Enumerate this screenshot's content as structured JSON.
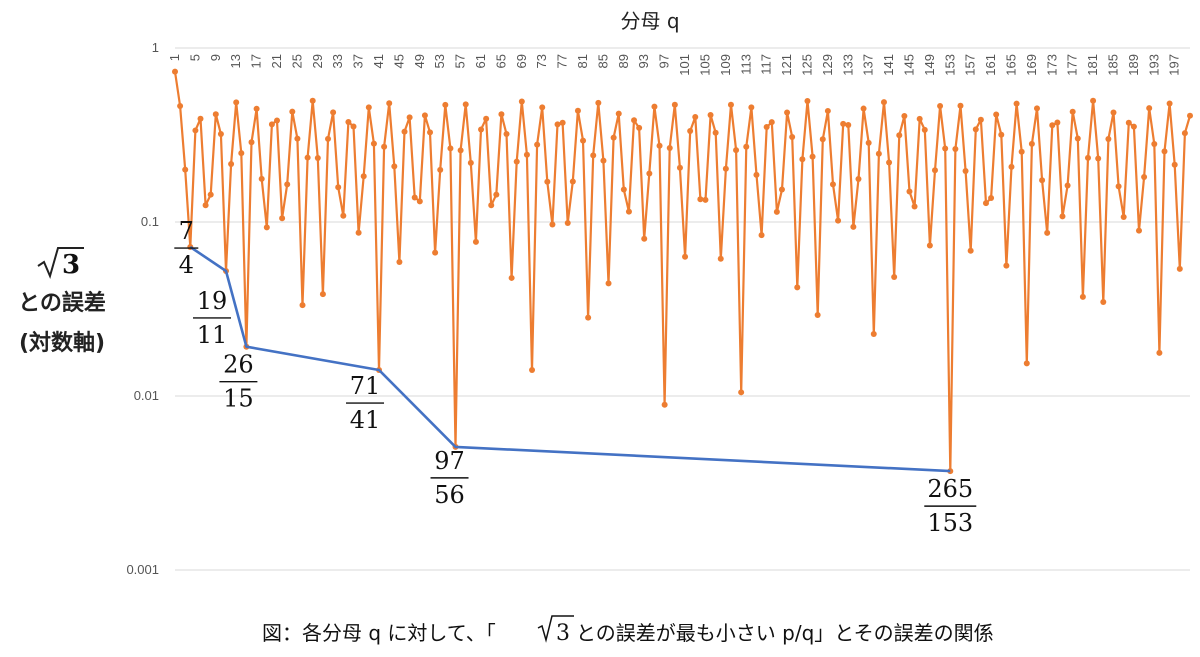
{
  "chart_data": {
    "type": "line",
    "title": "",
    "xlabel": "分母 q",
    "ylabel": {
      "sqrt_base": "3",
      "line1": "との誤差",
      "line2": "(対数軸)"
    },
    "x_axis_position": "top",
    "x_tick_labels": [
      1,
      5,
      9,
      13,
      17,
      21,
      25,
      29,
      33,
      37,
      41,
      45,
      49,
      53,
      57,
      61,
      65,
      69,
      73,
      77,
      81,
      85,
      89,
      93,
      97,
      101,
      105,
      109,
      113,
      117,
      121,
      125,
      129,
      133,
      137,
      141,
      145,
      149,
      153,
      157,
      161,
      165,
      169,
      173,
      177,
      181,
      185,
      189,
      193,
      197
    ],
    "y_scale": "log",
    "ylim": [
      0.001,
      1
    ],
    "y_tick_labels": [
      "1",
      "0.1",
      "0.01",
      "0.001"
    ],
    "y_tick_values": [
      1,
      0.1,
      0.01,
      0.001
    ],
    "grid": true,
    "series": [
      {
        "name": "",
        "color": "#ED7D31",
        "x": [
          1,
          2,
          3,
          4,
          5,
          6,
          7,
          8,
          9,
          10,
          11,
          12,
          13,
          14,
          15,
          16,
          17,
          18,
          19,
          20,
          21,
          22,
          23,
          24,
          25,
          26,
          27,
          28,
          29,
          30,
          31,
          32,
          33,
          34,
          35,
          36,
          37,
          38,
          39,
          40,
          41,
          42,
          43,
          44,
          45,
          46,
          47,
          48,
          49,
          50,
          51,
          52,
          53,
          54,
          55,
          56,
          57,
          58,
          59,
          60,
          61,
          62,
          63,
          64,
          65,
          66,
          67,
          68,
          69,
          70,
          71,
          72,
          73,
          74,
          75,
          76,
          77,
          78,
          79,
          80,
          81,
          82,
          83,
          84,
          85,
          86,
          87,
          88,
          89,
          90,
          91,
          92,
          93,
          94,
          95,
          96,
          97,
          98,
          99,
          100,
          101,
          102,
          103,
          104,
          105,
          106,
          107,
          108,
          109,
          110,
          111,
          112,
          113,
          114,
          115,
          116,
          117,
          118,
          119,
          120,
          121,
          122,
          123,
          124,
          125,
          126,
          127,
          128,
          129,
          130,
          131,
          132,
          133,
          134,
          135,
          136,
          137,
          138,
          139,
          140,
          141,
          142,
          143,
          144,
          145,
          146,
          147,
          148,
          149,
          150,
          151,
          152,
          153,
          154,
          155,
          156,
          157,
          158,
          159,
          160,
          161,
          162,
          163,
          164,
          165,
          166,
          167,
          168,
          169,
          170,
          171,
          172,
          173,
          174,
          175,
          176,
          177,
          178,
          179,
          180,
          181,
          182,
          183,
          184,
          185,
          186,
          187,
          188,
          189,
          190,
          191,
          192,
          193,
          194,
          195,
          196,
          197,
          198,
          199,
          200
        ],
        "y": [
          0.732,
          0.4641,
          0.2,
          0.0718,
          0.3359,
          0.3923,
          0.1248,
          0.1436,
          0.4162,
          0.3205,
          0.0523,
          0.2154,
          0.4872,
          0.2487,
          0.0192,
          0.2872,
          0.4474,
          0.1769,
          0.0931,
          0.3641,
          0.3829,
          0.1051,
          0.1646,
          0.4308,
          0.3013,
          0.0333,
          0.2346,
          0.4974,
          0.2331,
          0.0385,
          0.3002,
          0.4267,
          0.1585,
          0.1087,
          0.3756,
          0.3538,
          0.0867,
          0.1833,
          0.4556,
          0.2821,
          0.0141,
          0.2705,
          0.4816,
          0.2087,
          0.0589,
          0.3307,
          0.3996,
          0.1384,
          0.1313,
          0.4103,
          0.3275,
          0.0667,
          0.1994,
          0.4711,
          0.2648,
          0.0051,
          0.2582,
          0.4744,
          0.2186,
          0.0769,
          0.3402,
          0.3923,
          0.1248,
          0.1436,
          0.4162,
          0.3205,
          0.0477,
          0.2224,
          0.4926,
          0.2436,
          0.0141,
          0.2786,
          0.4559,
          0.1704,
          0.0967,
          0.3641,
          0.3716,
          0.0987,
          0.1709,
          0.4359,
          0.2936,
          0.0282,
          0.2414,
          0.4841,
          0.2252,
          0.0444,
          0.3054,
          0.4194,
          0.1538,
          0.1148,
          0.3841,
          0.3475,
          0.0801,
          0.1899,
          0.4603,
          0.2743,
          0.0089,
          0.2661,
          0.4718,
          0.2051,
          0.0631,
          0.3334,
          0.4013,
          0.1351,
          0.1341,
          0.4122,
          0.3256,
          0.0615,
          0.2024,
          0.4717,
          0.259,
          0.0105,
          0.2708,
          0.4559,
          0.1867,
          0.0841,
          0.3513,
          0.3752,
          0.1143,
          0.1538,
          0.4257,
          0.3081,
          0.0421,
          0.2293,
          0.4958,
          0.2377,
          0.0292,
          0.2989,
          0.4348,
          0.1646,
          0.1019,
          0.3665,
          0.3607,
          0.0937,
          0.1767,
          0.4487,
          0.2851,
          0.0227,
          0.2469,
          0.4886,
          0.2197,
          0.0483,
          0.3154,
          0.4066,
          0.1497,
          0.1227,
          0.3917,
          0.3385,
          0.0733,
          0.1982,
          0.4641,
          0.2646,
          0.0037,
          0.2628,
          0.4654,
          0.1963,
          0.0684,
          0.3408,
          0.3872,
          0.1283,
          0.1373,
          0.4146,
          0.3174,
          0.0561,
          0.2075,
          0.4793,
          0.2535,
          0.0154,
          0.2812,
          0.4499,
          0.1737,
          0.0866,
          0.3596,
          0.3734,
          0.1077,
          0.1622,
          0.4305,
          0.3021,
          0.0371,
          0.2338,
          0.4979,
          0.2317,
          0.0347,
          0.2998,
          0.4261,
          0.1602,
          0.1069,
          0.3721,
          0.3534,
          0.0892,
          0.1815,
          0.4513,
          0.2808,
          0.0177,
          0.2546,
          0.4796,
          0.2133,
          0.0538,
          0.3244,
          0.4083
        ]
      },
      {
        "name": "",
        "color": "#4472C4",
        "x": [
          4,
          11,
          15,
          41,
          56,
          153
        ],
        "y": [
          0.0718,
          0.0523,
          0.0192,
          0.0141,
          0.0051,
          0.0037
        ],
        "labels": [
          {
            "num": "7",
            "den": "4"
          },
          {
            "num": "19",
            "den": "11"
          },
          {
            "num": "26",
            "den": "15"
          },
          {
            "num": "71",
            "den": "41"
          },
          {
            "num": "97",
            "den": "56"
          },
          {
            "num": "265",
            "den": "153"
          }
        ]
      }
    ],
    "caption": {
      "before": "図：各分母 q に対して、「",
      "sqrt_base": "3",
      "after": " との誤差が最も小さい p/q」とその誤差の関係"
    }
  }
}
